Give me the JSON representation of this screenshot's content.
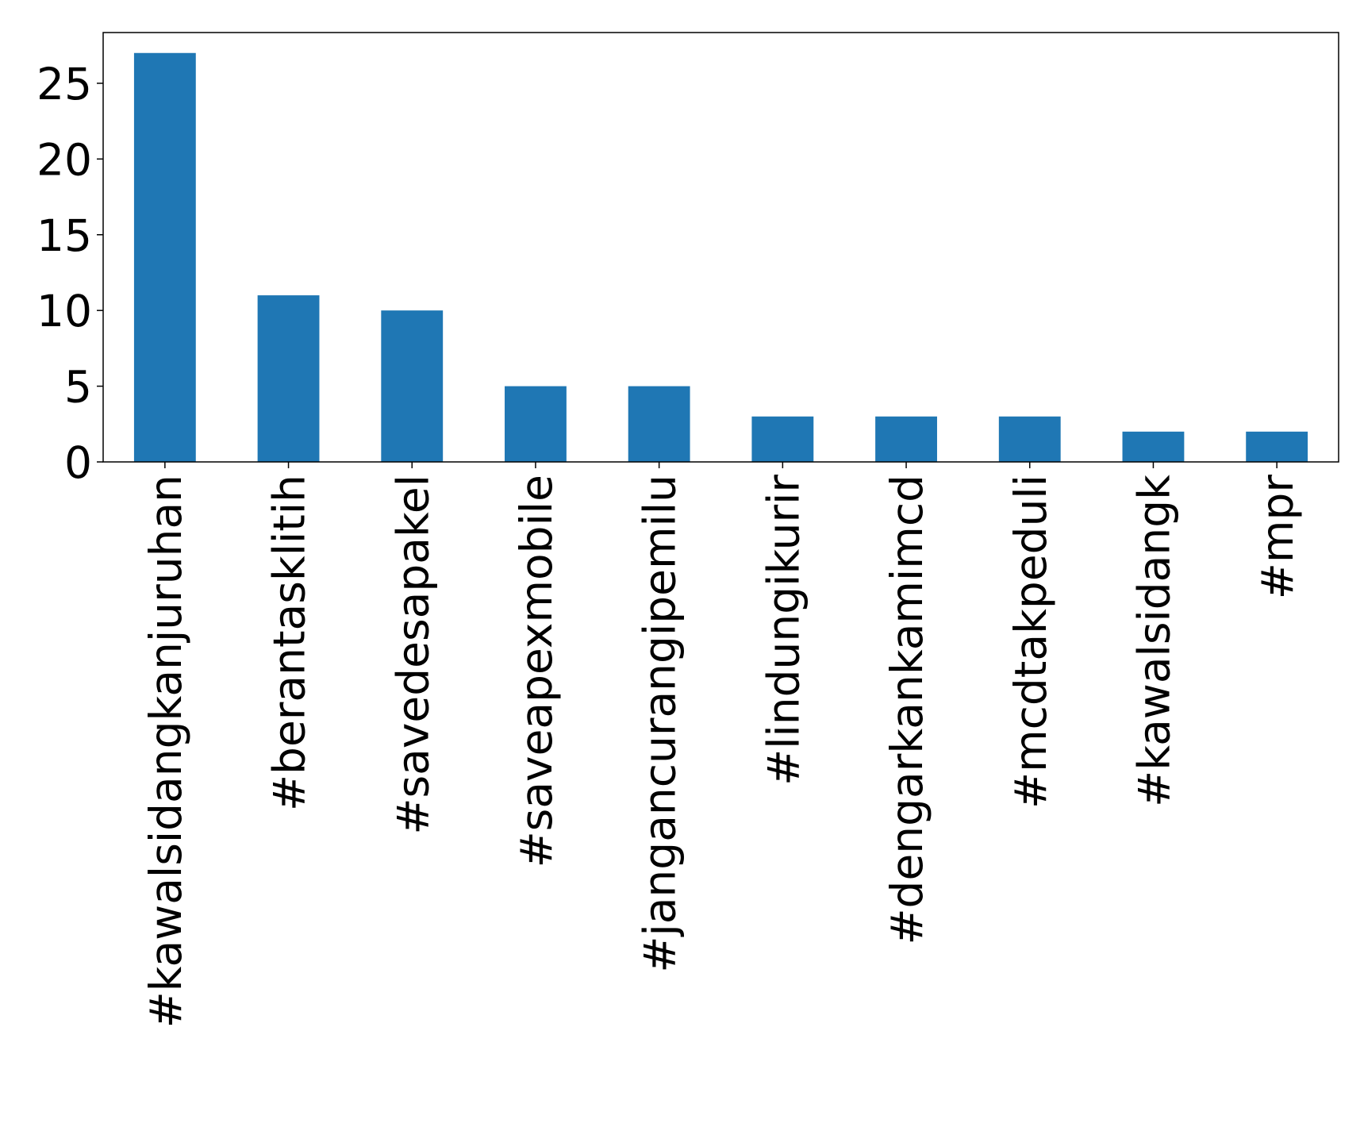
{
  "chart_data": {
    "type": "bar",
    "categories": [
      "#kawalsidangkanjuruhan",
      "#berantasklitih",
      "#savedesapakel",
      "#saveapexmobile",
      "#jangancurangipemilu",
      "#lindungikurir",
      "#dengarkankamimcd",
      "#mcdtakpeduli",
      "#kawalsidangk",
      "#mpr"
    ],
    "values": [
      27,
      11,
      10,
      5,
      5,
      3,
      3,
      3,
      2,
      2
    ],
    "color": "#1f77b4",
    "ylim": [
      0,
      28.35
    ],
    "yticks": [
      0,
      5,
      10,
      15,
      20,
      25
    ],
    "grid": false
  }
}
